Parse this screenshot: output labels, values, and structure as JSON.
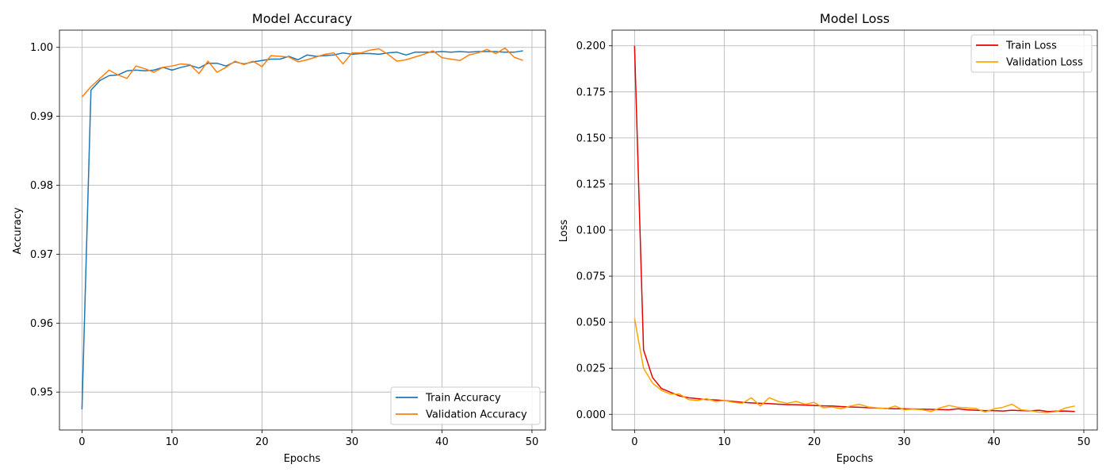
{
  "chart_data": [
    {
      "type": "line",
      "title": "Model Accuracy",
      "xlabel": "Epochs",
      "ylabel": "Accuracy",
      "xlim": [
        -2.5,
        51.5
      ],
      "ylim": [
        0.9445,
        1.0025
      ],
      "xticks": [
        0,
        10,
        20,
        30,
        40,
        50
      ],
      "yticks": [
        0.95,
        0.96,
        0.97,
        0.98,
        0.99,
        1.0
      ],
      "ytick_labels": [
        "0.95",
        "0.96",
        "0.97",
        "0.98",
        "0.99",
        "1.00"
      ],
      "grid": true,
      "legend_position": "lower-right",
      "series": [
        {
          "name": "Train Accuracy",
          "color": "#1f77b4",
          "values": [
            0.9475,
            0.9938,
            0.9952,
            0.9959,
            0.996,
            0.9966,
            0.9967,
            0.9966,
            0.9967,
            0.9971,
            0.9967,
            0.9971,
            0.9974,
            0.997,
            0.9977,
            0.9977,
            0.9973,
            0.9979,
            0.9976,
            0.9979,
            0.9981,
            0.9983,
            0.9983,
            0.9987,
            0.9982,
            0.9989,
            0.9987,
            0.9988,
            0.9989,
            0.9992,
            0.999,
            0.9991,
            0.9991,
            0.999,
            0.9992,
            0.9993,
            0.9989,
            0.9993,
            0.9993,
            0.9993,
            0.9994,
            0.9993,
            0.9994,
            0.9993,
            0.9994,
            0.9994,
            0.9994,
            0.9993,
            0.9993,
            0.9995
          ]
        },
        {
          "name": "Validation Accuracy",
          "color": "#ff7f0e",
          "values": [
            0.9928,
            0.9943,
            0.9955,
            0.9967,
            0.996,
            0.9955,
            0.9973,
            0.9969,
            0.9964,
            0.9971,
            0.9973,
            0.9976,
            0.9975,
            0.9962,
            0.998,
            0.9964,
            0.9971,
            0.998,
            0.9975,
            0.998,
            0.9972,
            0.9988,
            0.9987,
            0.9986,
            0.9979,
            0.9982,
            0.9986,
            0.999,
            0.9992,
            0.9976,
            0.9992,
            0.9992,
            0.9996,
            0.9998,
            0.999,
            0.998,
            0.9982,
            0.9986,
            0.999,
            0.9995,
            0.9985,
            0.9983,
            0.9981,
            0.9989,
            0.9992,
            0.9997,
            0.9991,
            0.9999,
            0.9986,
            0.9981
          ]
        }
      ]
    },
    {
      "type": "line",
      "title": "Model Loss",
      "xlabel": "Epochs",
      "ylabel": "Loss",
      "xlim": [
        -2.5,
        51.5
      ],
      "ylim": [
        -0.0085,
        0.2085
      ],
      "xticks": [
        0,
        10,
        20,
        30,
        40,
        50
      ],
      "yticks": [
        0.0,
        0.025,
        0.05,
        0.075,
        0.1,
        0.125,
        0.15,
        0.175,
        0.2
      ],
      "ytick_labels": [
        "0.000",
        "0.025",
        "0.050",
        "0.075",
        "0.100",
        "0.125",
        "0.150",
        "0.175",
        "0.200"
      ],
      "grid": true,
      "legend_position": "upper-right",
      "series": [
        {
          "name": "Train Loss",
          "color": "#e60000",
          "values": [
            0.2,
            0.035,
            0.02,
            0.014,
            0.012,
            0.01,
            0.009,
            0.0085,
            0.008,
            0.0078,
            0.0075,
            0.007,
            0.0065,
            0.0062,
            0.006,
            0.0058,
            0.0055,
            0.0053,
            0.0052,
            0.005,
            0.0048,
            0.0046,
            0.0045,
            0.0042,
            0.004,
            0.0038,
            0.0036,
            0.0034,
            0.0032,
            0.003,
            0.003,
            0.0029,
            0.0028,
            0.0027,
            0.0026,
            0.0025,
            0.003,
            0.0024,
            0.0022,
            0.002,
            0.002,
            0.0018,
            0.0022,
            0.002,
            0.0019,
            0.0022,
            0.0015,
            0.0017,
            0.0018,
            0.0015
          ]
        },
        {
          "name": "Validation Loss",
          "color": "#ffa500",
          "values": [
            0.052,
            0.025,
            0.017,
            0.013,
            0.011,
            0.011,
            0.008,
            0.0075,
            0.0085,
            0.007,
            0.0075,
            0.0065,
            0.006,
            0.009,
            0.0045,
            0.009,
            0.007,
            0.006,
            0.007,
            0.0055,
            0.0065,
            0.0035,
            0.004,
            0.003,
            0.0045,
            0.0055,
            0.004,
            0.0035,
            0.003,
            0.0045,
            0.0025,
            0.0028,
            0.0025,
            0.0015,
            0.0035,
            0.0048,
            0.0038,
            0.0035,
            0.0032,
            0.0012,
            0.003,
            0.0038,
            0.0055,
            0.0025,
            0.002,
            0.0012,
            0.001,
            0.0015,
            0.0035,
            0.0045
          ]
        }
      ]
    }
  ]
}
